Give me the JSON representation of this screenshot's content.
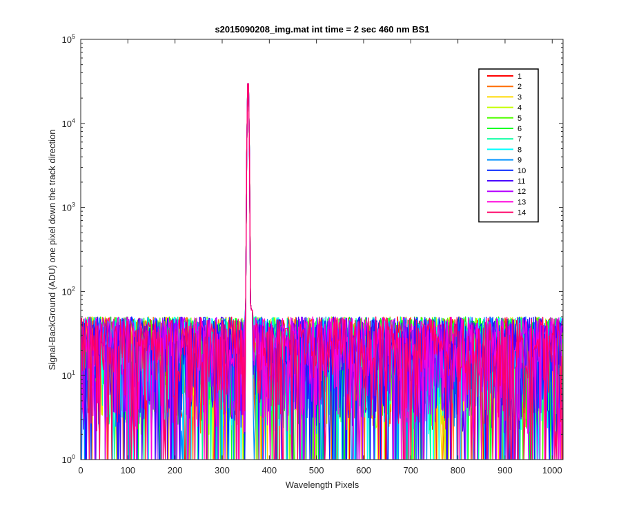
{
  "chart_data": {
    "type": "line",
    "title": "s2015090208_img.mat int time = 2 sec  460 nm BS1",
    "xlabel": "Wavelength Pixels",
    "ylabel": "Signal-BackGround (ADU) one pixel down the track direction",
    "xlim": [
      0,
      1023
    ],
    "ylim": [
      1,
      100000
    ],
    "yscale": "log",
    "xticks": [
      0,
      100,
      200,
      300,
      400,
      500,
      600,
      700,
      800,
      900,
      1000
    ],
    "yticks": [
      {
        "base": "10",
        "exp": "0"
      },
      {
        "base": "10",
        "exp": "1"
      },
      {
        "base": "10",
        "exp": "2"
      },
      {
        "base": "10",
        "exp": "3"
      },
      {
        "base": "10",
        "exp": "4"
      },
      {
        "base": "10",
        "exp": "5"
      }
    ],
    "grid": false,
    "legend_location": "top-right",
    "noise_range_adu": [
      1,
      60
    ],
    "peak": {
      "x": 355,
      "y": 38000
    },
    "secondary_bump": {
      "x": 363,
      "y": 60
    },
    "series": [
      {
        "name": "1",
        "color": "#ff0000"
      },
      {
        "name": "2",
        "color": "#ff6d00"
      },
      {
        "name": "3",
        "color": "#ffd900"
      },
      {
        "name": "4",
        "color": "#c4ff00"
      },
      {
        "name": "5",
        "color": "#4fff00"
      },
      {
        "name": "6",
        "color": "#00ff24"
      },
      {
        "name": "7",
        "color": "#00ff9e"
      },
      {
        "name": "8",
        "color": "#00ffff"
      },
      {
        "name": "9",
        "color": "#0092ff"
      },
      {
        "name": "10",
        "color": "#0024ff"
      },
      {
        "name": "11",
        "color": "#4900ff"
      },
      {
        "name": "12",
        "color": "#b600ff"
      },
      {
        "name": "13",
        "color": "#ff00db"
      },
      {
        "name": "14",
        "color": "#ff0066"
      }
    ]
  }
}
